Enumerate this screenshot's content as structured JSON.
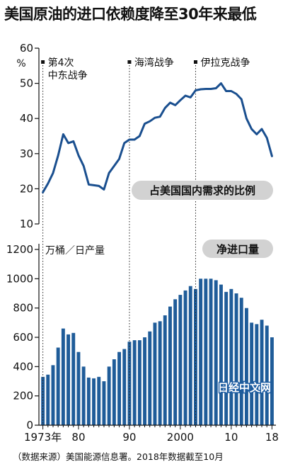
{
  "title": "美国原油的进口依赖度降至30年来最低",
  "caption": "（数据来源）美国能源信息署。2018年数据截至10月",
  "watermark": "日经中文网",
  "colors": {
    "line": "#1a4f8f",
    "bar": "#1f5c99",
    "pill": "#d2d2d2",
    "axis": "#111111"
  },
  "chart_data": [
    {
      "type": "line",
      "title": "占美国国内需求的比例",
      "ylabel": "%",
      "ylim": [
        10,
        60
      ],
      "yticks": [
        10,
        20,
        30,
        40,
        50,
        60
      ],
      "x": [
        1973,
        1974,
        1975,
        1976,
        1977,
        1978,
        1979,
        1980,
        1981,
        1982,
        1983,
        1984,
        1985,
        1986,
        1987,
        1988,
        1989,
        1990,
        1991,
        1992,
        1993,
        1994,
        1995,
        1996,
        1997,
        1998,
        1999,
        2000,
        2001,
        2002,
        2003,
        2004,
        2005,
        2006,
        2007,
        2008,
        2009,
        2010,
        2011,
        2012,
        2013,
        2014,
        2015,
        2016,
        2017,
        2018
      ],
      "values": [
        19.0,
        21.5,
        24.5,
        29.5,
        35.5,
        33.0,
        33.5,
        29.5,
        26.5,
        21.2,
        21.0,
        20.8,
        19.8,
        24.5,
        26.5,
        28.5,
        33.0,
        34.0,
        34.0,
        35.0,
        38.5,
        39.2,
        40.2,
        40.5,
        43.0,
        44.5,
        43.8,
        45.2,
        46.5,
        46.0,
        48.0,
        48.3,
        48.4,
        48.4,
        48.6,
        50.0,
        47.8,
        47.8,
        47.0,
        45.5,
        40.0,
        37.0,
        35.5,
        37.0,
        34.5,
        29.3
      ],
      "annotations": [
        {
          "year": 1973,
          "label_lines": [
            "第4次",
            "中东战争"
          ]
        },
        {
          "year": 1990,
          "label_lines": [
            "海湾战争"
          ]
        },
        {
          "year": 2003,
          "label_lines": [
            "伊拉克战争"
          ]
        }
      ]
    },
    {
      "type": "bar",
      "title": "净进口量",
      "ylabel": "万桶／日产量",
      "ylim": [
        0,
        1200
      ],
      "yticks": [
        0,
        200,
        400,
        600,
        800,
        1000,
        1200
      ],
      "x": [
        1973,
        1974,
        1975,
        1976,
        1977,
        1978,
        1979,
        1980,
        1981,
        1982,
        1983,
        1984,
        1985,
        1986,
        1987,
        1988,
        1989,
        1990,
        1991,
        1992,
        1993,
        1994,
        1995,
        1996,
        1997,
        1998,
        1999,
        2000,
        2001,
        2002,
        2003,
        2004,
        2005,
        2006,
        2007,
        2008,
        2009,
        2010,
        2011,
        2012,
        2013,
        2014,
        2015,
        2016,
        2017,
        2018
      ],
      "values": [
        330,
        345,
        410,
        530,
        660,
        620,
        630,
        500,
        400,
        325,
        320,
        330,
        300,
        400,
        450,
        500,
        520,
        570,
        580,
        580,
        600,
        640,
        700,
        710,
        750,
        810,
        860,
        890,
        920,
        950,
        930,
        1000,
        1000,
        1000,
        990,
        960,
        910,
        930,
        900,
        870,
        800,
        700,
        690,
        720,
        680,
        600
      ],
      "xtick_labels": [
        {
          "year": 1973,
          "label": "1973年"
        },
        {
          "year": 1980,
          "label": "80"
        },
        {
          "year": 1990,
          "label": "90"
        },
        {
          "year": 2000,
          "label": "2000"
        },
        {
          "year": 2010,
          "label": "10"
        },
        {
          "year": 2018,
          "label": "18"
        }
      ]
    }
  ]
}
